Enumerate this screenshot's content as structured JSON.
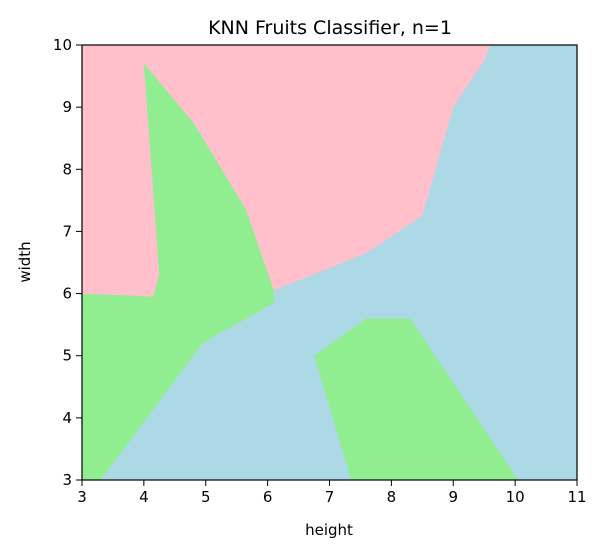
{
  "chart_data": {
    "type": "decision-boundary",
    "title": "KNN Fruits Classifier, n=1",
    "xlabel": "height",
    "ylabel": "width",
    "xlim": [
      3,
      11
    ],
    "ylim": [
      3,
      10
    ],
    "xticks": [
      "3",
      "4",
      "5",
      "6",
      "7",
      "8",
      "9",
      "10",
      "11"
    ],
    "yticks": [
      "3",
      "4",
      "5",
      "6",
      "7",
      "8",
      "9",
      "10"
    ],
    "background_color": "#add8e6",
    "regions": [
      {
        "color": "#ffc0cb",
        "polygon": [
          [
            3,
            10
          ],
          [
            9.6,
            10
          ],
          [
            9.5,
            9.75
          ],
          [
            9.0,
            9.0
          ],
          [
            8.5,
            7.25
          ],
          [
            7.6,
            6.65
          ],
          [
            6.1,
            6.05
          ],
          [
            5.65,
            7.35
          ],
          [
            4.8,
            8.75
          ],
          [
            4.0,
            9.7
          ],
          [
            4.25,
            6.3
          ],
          [
            4.15,
            5.95
          ],
          [
            3,
            6.0
          ]
        ]
      },
      {
        "color": "#90ee90",
        "polygon": [
          [
            3,
            6.0
          ],
          [
            4.15,
            5.95
          ],
          [
            4.25,
            6.3
          ],
          [
            4.0,
            9.7
          ],
          [
            4.8,
            8.75
          ],
          [
            5.65,
            7.35
          ],
          [
            6.1,
            6.05
          ],
          [
            6.1,
            5.85
          ],
          [
            5.75,
            5.65
          ],
          [
            5.2,
            5.35
          ],
          [
            4.95,
            5.2
          ],
          [
            3.3,
            3.0
          ],
          [
            3,
            3.0
          ]
        ]
      },
      {
        "color": "#90ee90",
        "polygon": [
          [
            6.75,
            5.0
          ],
          [
            7.6,
            5.6
          ],
          [
            8.3,
            5.6
          ],
          [
            10.05,
            3.0
          ],
          [
            7.35,
            3.0
          ]
        ]
      }
    ]
  }
}
